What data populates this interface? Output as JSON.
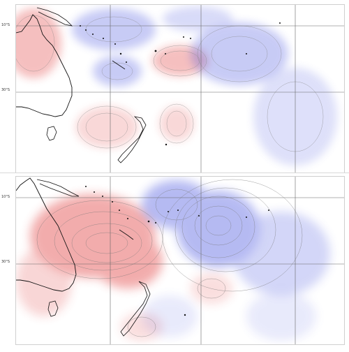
{
  "panels": [
    {
      "id": "top",
      "lat_labels": [
        "10°S",
        "30°S"
      ],
      "anomaly_colors": {
        "positive": "#e34a4a",
        "negative": "#4a55e0"
      }
    },
    {
      "id": "bottom",
      "lat_labels": [
        "10°S",
        "30°S"
      ],
      "anomaly_colors": {
        "positive": "#e34a4a",
        "negative": "#4a55e0"
      }
    }
  ]
}
